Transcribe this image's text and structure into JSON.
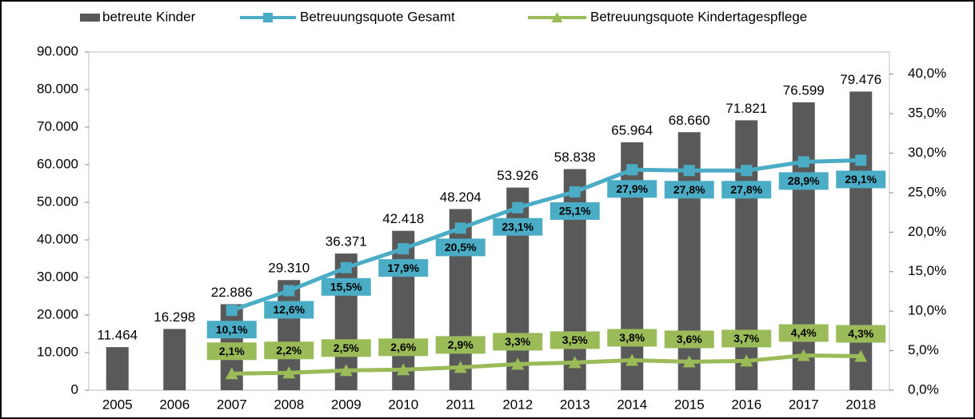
{
  "chart_data": {
    "type": "bar",
    "categories": [
      "2005",
      "2006",
      "2007",
      "2008",
      "2009",
      "2010",
      "2011",
      "2012",
      "2013",
      "2014",
      "2015",
      "2016",
      "2017",
      "2018"
    ],
    "series": [
      {
        "name": "betreute Kinder",
        "type": "bar",
        "color": "#595959",
        "values": [
          11464,
          16298,
          22886,
          29310,
          36371,
          42418,
          48204,
          53926,
          58838,
          65964,
          68660,
          71821,
          76599,
          79476
        ],
        "value_labels": [
          "11.464",
          "16.298",
          "22.886",
          "29.310",
          "36.371",
          "42.418",
          "48.204",
          "53.926",
          "58.838",
          "65.964",
          "68.660",
          "71.821",
          "76.599",
          "79.476"
        ]
      },
      {
        "name": "Betreuungsquote Gesamt",
        "type": "line",
        "marker": "square",
        "axis": "y2",
        "color": "#4bacc6",
        "values": [
          null,
          null,
          10.1,
          12.6,
          15.5,
          17.9,
          20.5,
          23.1,
          25.1,
          27.9,
          27.8,
          27.8,
          28.9,
          29.1
        ],
        "value_labels": [
          null,
          null,
          "10,1%",
          "12,6%",
          "15,5%",
          "17,9%",
          "20,5%",
          "23,1%",
          "25,1%",
          "27,9%",
          "27,8%",
          "27,8%",
          "28,9%",
          "29,1%"
        ]
      },
      {
        "name": "Betreuungsquote Kindertagespflege",
        "type": "line",
        "marker": "triangle",
        "axis": "y2",
        "color": "#9bbb59",
        "values": [
          null,
          null,
          2.1,
          2.2,
          2.5,
          2.6,
          2.9,
          3.3,
          3.5,
          3.8,
          3.6,
          3.7,
          4.4,
          4.3
        ],
        "value_labels": [
          null,
          null,
          "2,1%",
          "2,2%",
          "2,5%",
          "2,6%",
          "2,9%",
          "3,3%",
          "3,5%",
          "3,8%",
          "3,6%",
          "3,7%",
          "4,4%",
          "4,3%"
        ]
      }
    ],
    "ylim": [
      0,
      90000
    ],
    "yticks": [
      0,
      {
        "value": 10000,
        "label": "10.000"
      },
      {
        "value": 20000,
        "label": "20.000"
      },
      {
        "value": 30000,
        "label": "30.000"
      },
      {
        "value": 40000,
        "label": "40.000"
      },
      {
        "value": 50000,
        "label": "50.000"
      },
      {
        "value": 60000,
        "label": "60.000"
      },
      {
        "value": 70000,
        "label": "70.000"
      },
      {
        "value": 80000,
        "label": "80.000"
      },
      {
        "value": 90000,
        "label": "90.000"
      }
    ],
    "y2lim": [
      0,
      42.8
    ],
    "y2ticks": [
      {
        "value": 0,
        "label": "0,0%"
      },
      {
        "value": 5,
        "label": "5,0%"
      },
      {
        "value": 10,
        "label": "10,0%"
      },
      {
        "value": 15,
        "label": "15,0%"
      },
      {
        "value": 20,
        "label": "20,0%"
      },
      {
        "value": 25,
        "label": "25,0%"
      },
      {
        "value": 30,
        "label": "30,0%"
      },
      {
        "value": 35,
        "label": "35,0%"
      },
      {
        "value": 40,
        "label": "40,0%"
      }
    ],
    "legend": "top"
  }
}
